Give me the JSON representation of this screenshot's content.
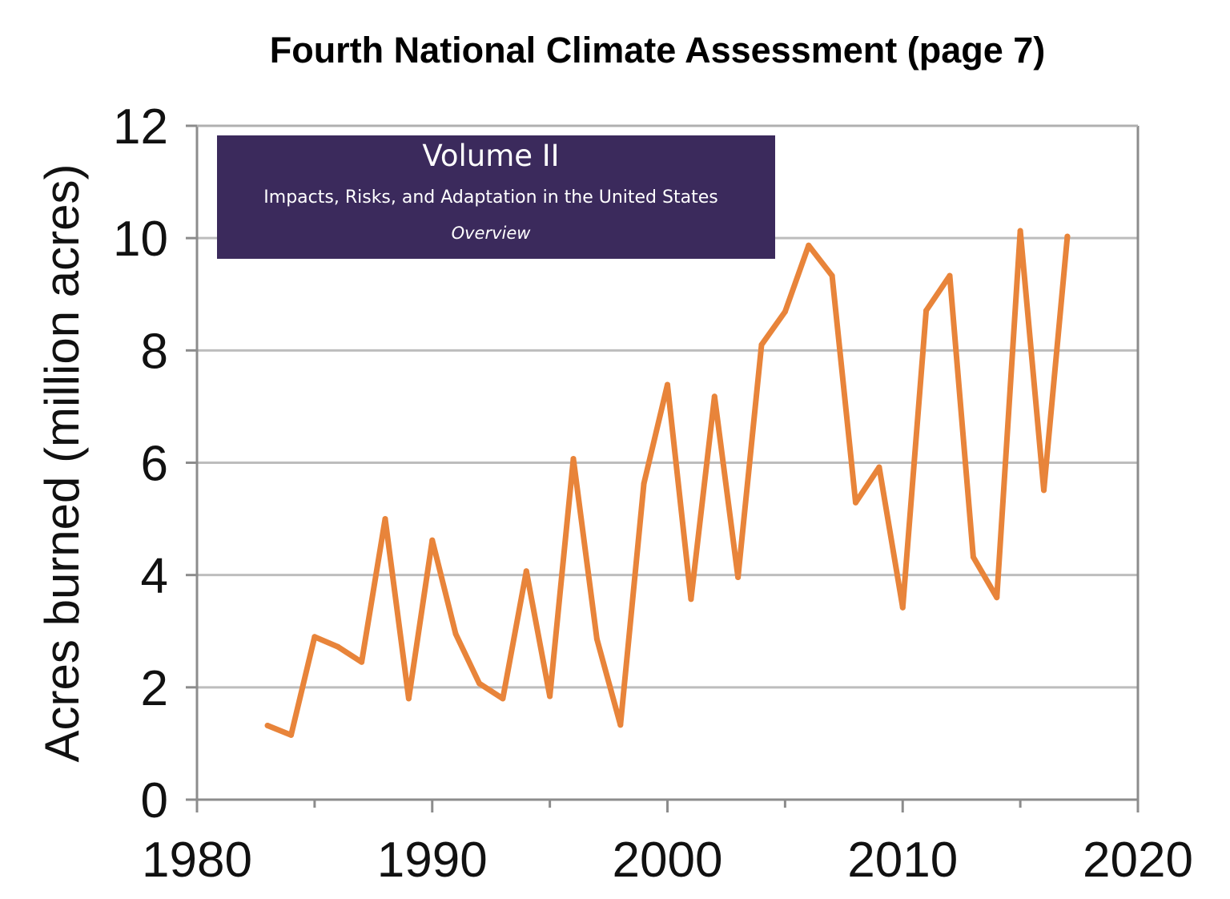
{
  "chart_data": {
    "type": "line",
    "title": "Fourth National Climate Assessment (page 7)",
    "xlabel": "",
    "ylabel": "Acres burned (million acres)",
    "xlim": [
      1980,
      2020
    ],
    "ylim": [
      0,
      12
    ],
    "xticks": [
      1980,
      1990,
      2000,
      2010,
      2020
    ],
    "yticks": [
      0,
      2,
      4,
      6,
      8,
      10,
      12
    ],
    "grid": true,
    "series": [
      {
        "name": "Acres burned",
        "color": "#e8843a",
        "x": [
          1983,
          1984,
          1985,
          1986,
          1987,
          1988,
          1989,
          1990,
          1991,
          1992,
          1993,
          1994,
          1995,
          1996,
          1997,
          1998,
          1999,
          2000,
          2001,
          2002,
          2003,
          2004,
          2005,
          2006,
          2007,
          2008,
          2009,
          2010,
          2011,
          2012,
          2013,
          2014,
          2015,
          2016,
          2017
        ],
        "values": [
          1.32,
          1.15,
          2.9,
          2.72,
          2.45,
          5.0,
          1.8,
          4.62,
          2.95,
          2.07,
          1.8,
          4.07,
          1.84,
          6.07,
          2.86,
          1.33,
          5.63,
          7.39,
          3.57,
          7.18,
          3.96,
          8.1,
          8.69,
          9.87,
          9.33,
          5.29,
          5.92,
          3.42,
          8.71,
          9.33,
          4.32,
          3.6,
          10.13,
          5.51,
          10.03
        ]
      }
    ],
    "inset": {
      "title": "Volume II",
      "subtitle": "Impacts, Risks, and Adaptation in the United States",
      "note": "Overview",
      "background": "#3b2a5c"
    }
  }
}
